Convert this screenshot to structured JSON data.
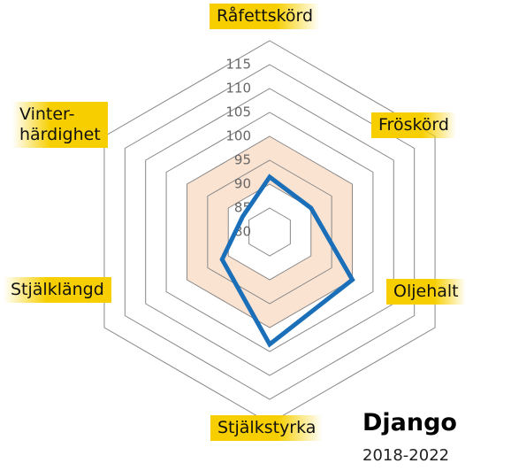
{
  "chart_data": {
    "type": "radar",
    "title": "Django",
    "subtitle": "2018-2022",
    "categories": [
      "Råfettskörd",
      "Fröskörd",
      "Oljehalt",
      "Stjälkstyrka",
      "Stjälklängd",
      "Vinter-\nhärdighet"
    ],
    "values": [
      86.5,
      85,
      95,
      98.5,
      86.5,
      81.5
    ],
    "color": "#1a6fb8",
    "ylim": [
      75,
      115
    ],
    "yticks": [
      80,
      85,
      90,
      95,
      100,
      105,
      110,
      115
    ],
    "band": [
      85,
      95
    ],
    "band_color": "#fbe3d2",
    "grid": true
  }
}
